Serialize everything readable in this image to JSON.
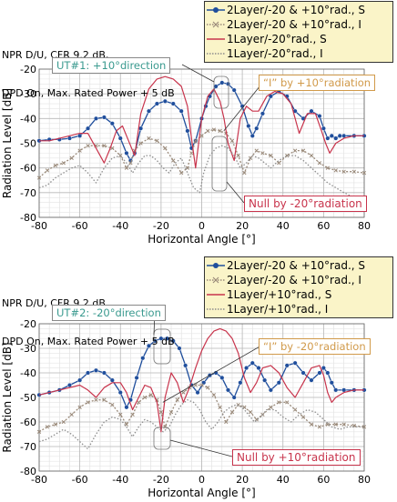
{
  "chart_data": [
    {
      "type": "line",
      "title_lines": [
        "NPR D/U, CFR 9.2 dB,",
        "DPD On, Max. Rated Power + 5 dB"
      ],
      "xlabel": "Horizontal Angle [°]",
      "ylabel": "Radiation Level [dB]",
      "xlim": [
        -80,
        80
      ],
      "ylim": [
        -80,
        -20
      ],
      "xticks": [
        -80,
        -60,
        -40,
        -20,
        0,
        20,
        40,
        60,
        80
      ],
      "yticks": [
        -20,
        -30,
        -40,
        -50,
        -60,
        -70,
        -80
      ],
      "grid": true,
      "legend_position": "top-right",
      "annotations": {
        "ut": "UT#1: +10°direction",
        "interference": "“I” by +10°radiation",
        "null": "Null by -20°radiation"
      },
      "series": [
        {
          "name": "2Layer/-20 & +10°rad., S",
          "color": "#1f4e9c",
          "style": "line-circle",
          "x": [
            -80,
            -75,
            -70,
            -65,
            -60,
            -56,
            -52,
            -48,
            -44,
            -40,
            -37,
            -35,
            -33,
            -30,
            -26,
            -22,
            -18,
            -14,
            -10,
            -7,
            -5,
            -3,
            0,
            2,
            4,
            7,
            10,
            13,
            16,
            20,
            23,
            25,
            27,
            30,
            34,
            38,
            42,
            46,
            50,
            54,
            58,
            60,
            62,
            64,
            66,
            68,
            70,
            75,
            80
          ],
          "y": [
            -49,
            -48.5,
            -48.5,
            -48,
            -47,
            -44,
            -40,
            -39.5,
            -42,
            -48,
            -54,
            -57,
            -54,
            -44,
            -37,
            -34,
            -33,
            -34,
            -37,
            -45,
            -52,
            -49,
            -40,
            -35,
            -31,
            -27,
            -25.5,
            -26,
            -28.5,
            -35,
            -43,
            -47,
            -44,
            -38,
            -31,
            -29,
            -31,
            -37,
            -40,
            -37,
            -39,
            -44,
            -48,
            -47,
            -48,
            -47,
            -47,
            -47,
            -47
          ]
        },
        {
          "name": "2Layer/-20 & +10°rad., I",
          "color": "#9a8a7a",
          "style": "dot-x",
          "x": [
            -80,
            -76,
            -72,
            -68,
            -64,
            -60,
            -56,
            -52,
            -48,
            -44,
            -40,
            -37,
            -35,
            -33,
            -30,
            -26,
            -22,
            -18,
            -14,
            -10,
            -7,
            -5,
            -3,
            0,
            3,
            6,
            9,
            12,
            15,
            18,
            21,
            24,
            27,
            30,
            34,
            38,
            42,
            46,
            50,
            54,
            58,
            62,
            66,
            70,
            75,
            80
          ],
          "y": [
            -64,
            -61,
            -59,
            -58,
            -56,
            -53,
            -51,
            -51,
            -51,
            -52,
            -55,
            -60,
            -58,
            -53,
            -50,
            -48,
            -49,
            -52,
            -57,
            -62,
            -60,
            -54,
            -49,
            -47,
            -45,
            -44.5,
            -45,
            -46,
            -49,
            -55,
            -62,
            -56,
            -53,
            -54,
            -55,
            -58,
            -55,
            -53,
            -53,
            -55,
            -58,
            -60,
            -61,
            -61.5,
            -61.5,
            -62
          ]
        },
        {
          "name": "1Layer/-20°rad., S",
          "color": "#c8344c",
          "style": "line",
          "x": [
            -80,
            -75,
            -70,
            -65,
            -60,
            -56,
            -52,
            -48,
            -45,
            -42,
            -39,
            -36,
            -33,
            -30,
            -26,
            -22,
            -18,
            -14,
            -10,
            -7,
            -5,
            -3,
            0,
            3,
            6,
            9,
            11,
            13,
            16,
            19,
            22,
            25,
            28,
            32,
            36,
            40,
            44,
            48,
            52,
            56,
            59,
            61,
            63,
            66,
            70,
            75,
            80
          ],
          "y": [
            -49,
            -49,
            -48,
            -47,
            -46,
            -46,
            -52,
            -58,
            -52,
            -45,
            -43,
            -49,
            -55,
            -38,
            -28,
            -24,
            -23,
            -24,
            -27,
            -35,
            -48,
            -60,
            -40,
            -31,
            -28,
            -33,
            -40,
            -50,
            -57,
            -40,
            -35,
            -37,
            -37,
            -31,
            -29,
            -30,
            -34,
            -46,
            -38,
            -38,
            -45,
            -50,
            -54,
            -50,
            -48,
            -47,
            -47
          ]
        },
        {
          "name": "1Layer/-20°rad., I",
          "color": "#8c8c8c",
          "style": "dotted",
          "x": [
            -80,
            -76,
            -72,
            -68,
            -64,
            -60,
            -56,
            -52,
            -48,
            -44,
            -40,
            -37,
            -34,
            -31,
            -28,
            -25,
            -22,
            -19,
            -16,
            -13,
            -10,
            -7,
            -4,
            -1,
            1,
            4,
            7,
            10,
            13,
            16,
            19,
            22,
            25,
            28,
            31,
            34,
            38,
            42,
            46,
            50,
            54,
            58,
            62,
            66,
            70,
            75,
            80
          ],
          "y": [
            -68,
            -67,
            -64,
            -62,
            -60,
            -59,
            -62,
            -66,
            -60,
            -56,
            -55,
            -58,
            -62,
            -58,
            -55,
            -55,
            -57,
            -60,
            -62,
            -58,
            -56,
            -62,
            -68,
            -70,
            -62,
            -55,
            -52,
            -51,
            -52,
            -55,
            -60,
            -58,
            -55,
            -56,
            -58,
            -60,
            -57,
            -55,
            -55,
            -57,
            -60,
            -63,
            -66,
            -68,
            -70,
            -72,
            -72
          ]
        }
      ]
    },
    {
      "type": "line",
      "title_lines": [
        "NPR D/U, CFR 9.2 dB,",
        "DPD On, Max. Rated Power + 5 dB"
      ],
      "xlabel": "Horizontal Angle [°]",
      "ylabel": "Radiation Level [dB]",
      "xlim": [
        -80,
        80
      ],
      "ylim": [
        -80,
        -20
      ],
      "xticks": [
        -80,
        -60,
        -40,
        -20,
        0,
        20,
        40,
        60,
        80
      ],
      "yticks": [
        -20,
        -30,
        -40,
        -50,
        -60,
        -70,
        -80
      ],
      "grid": true,
      "legend_position": "top-right",
      "annotations": {
        "ut": "UT#2: -20°direction",
        "interference": "“I” by -20°radiation",
        "null": "Null by +10°radiation"
      },
      "series": [
        {
          "name": "2Layer/-20 & +10°rad., S",
          "color": "#1f4e9c",
          "style": "line-circle",
          "x": [
            -80,
            -75,
            -70,
            -65,
            -60,
            -56,
            -52,
            -48,
            -44,
            -40,
            -37,
            -35,
            -32,
            -29,
            -26,
            -23,
            -20,
            -17,
            -14,
            -11,
            -8,
            -5,
            -2,
            1,
            4,
            7,
            10,
            13,
            16,
            19,
            22,
            25,
            28,
            31,
            34,
            38,
            42,
            46,
            50,
            54,
            58,
            60,
            62,
            64,
            66,
            70,
            75,
            80
          ],
          "y": [
            -49,
            -48,
            -47,
            -45,
            -43,
            -40,
            -39,
            -40,
            -43,
            -48,
            -54,
            -51,
            -42,
            -34,
            -29,
            -27,
            -26,
            -26,
            -27,
            -30,
            -37,
            -45,
            -48,
            -44,
            -41,
            -40,
            -42,
            -47,
            -50,
            -44,
            -38,
            -36,
            -38,
            -43,
            -47,
            -44,
            -37,
            -36,
            -40,
            -43,
            -40,
            -38,
            -40,
            -44,
            -47,
            -47,
            -47,
            -47
          ]
        },
        {
          "name": "2Layer/-20 & +10°rad., I",
          "color": "#9a8a7a",
          "style": "dot-x",
          "x": [
            -80,
            -76,
            -72,
            -68,
            -64,
            -60,
            -56,
            -52,
            -48,
            -44,
            -40,
            -37,
            -34,
            -31,
            -28,
            -25,
            -22,
            -20,
            -18,
            -15,
            -12,
            -9,
            -6,
            -3,
            0,
            3,
            6,
            9,
            12,
            15,
            18,
            21,
            24,
            27,
            30,
            34,
            38,
            42,
            46,
            50,
            54,
            58,
            62,
            66,
            70,
            75,
            80
          ],
          "y": [
            -64,
            -62,
            -61,
            -60,
            -57,
            -54,
            -52,
            -51,
            -51,
            -53,
            -57,
            -61,
            -57,
            -52,
            -50,
            -49,
            -51,
            -56,
            -62,
            -56,
            -51,
            -48,
            -46,
            -45,
            -45,
            -46,
            -49,
            -54,
            -60,
            -56,
            -53,
            -54,
            -56,
            -59,
            -57,
            -54,
            -52,
            -52,
            -55,
            -58,
            -61,
            -62,
            -61,
            -61,
            -61,
            -61.5,
            -62
          ]
        },
        {
          "name": "1Layer/+10°rad., S",
          "color": "#c8344c",
          "style": "line",
          "x": [
            -80,
            -75,
            -70,
            -65,
            -60,
            -56,
            -52,
            -48,
            -44,
            -40,
            -37,
            -34,
            -31,
            -28,
            -25,
            -22,
            -20,
            -18,
            -15,
            -12,
            -9,
            -6,
            -3,
            0,
            3,
            6,
            9,
            12,
            15,
            18,
            21,
            24,
            27,
            30,
            34,
            38,
            42,
            46,
            50,
            54,
            58,
            60,
            62,
            64,
            66,
            70,
            75,
            80
          ],
          "y": [
            -49,
            -48,
            -47,
            -46,
            -45,
            -47,
            -50,
            -46,
            -44,
            -44,
            -48,
            -55,
            -50,
            -45,
            -46,
            -52,
            -64,
            -50,
            -40,
            -44,
            -52,
            -46,
            -38,
            -31,
            -26,
            -23,
            -22,
            -23,
            -26,
            -32,
            -42,
            -48,
            -44,
            -38,
            -37,
            -40,
            -46,
            -50,
            -44,
            -38,
            -37,
            -41,
            -48,
            -52,
            -50,
            -48,
            -47,
            -47
          ]
        },
        {
          "name": "1Layer/+10°rad., I",
          "color": "#8c8c8c",
          "style": "dotted",
          "x": [
            -80,
            -76,
            -72,
            -68,
            -64,
            -60,
            -56,
            -52,
            -48,
            -44,
            -40,
            -37,
            -34,
            -31,
            -28,
            -25,
            -22,
            -19,
            -16,
            -13,
            -10,
            -7,
            -4,
            -1,
            2,
            5,
            8,
            11,
            14,
            17,
            20,
            23,
            26,
            29,
            32,
            36,
            40,
            44,
            48,
            52,
            56,
            60,
            64,
            68,
            72,
            76,
            80
          ],
          "y": [
            -68,
            -67,
            -65,
            -63,
            -65,
            -68,
            -71,
            -65,
            -60,
            -58,
            -59,
            -62,
            -66,
            -62,
            -59,
            -60,
            -62,
            -64,
            -62,
            -57,
            -53,
            -51,
            -52,
            -55,
            -60,
            -63,
            -60,
            -56,
            -54,
            -53,
            -54,
            -57,
            -60,
            -58,
            -55,
            -55,
            -58,
            -60,
            -57,
            -55,
            -56,
            -59,
            -62,
            -63,
            -62,
            -62,
            -62
          ]
        }
      ]
    }
  ]
}
